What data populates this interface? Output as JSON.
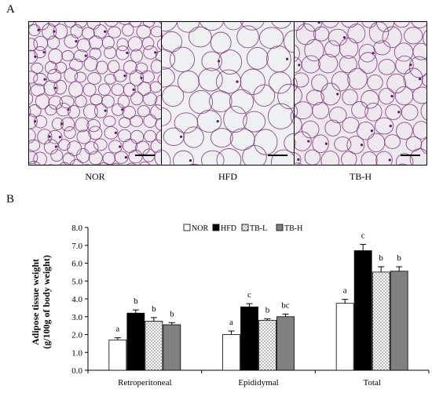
{
  "panels": {
    "a_label": "A",
    "b_label": "B",
    "images": [
      {
        "label": "NOR",
        "cell_size": "small",
        "tint": "#efeaf0",
        "stain": "#7d2f7a"
      },
      {
        "label": "HFD",
        "cell_size": "large",
        "tint": "#eef0f2",
        "stain": "#7d2f7a"
      },
      {
        "label": "TB-H",
        "cell_size": "medium",
        "tint": "#eee9ee",
        "stain": "#7d2f7a"
      }
    ]
  },
  "chart_data": {
    "type": "bar",
    "ylabel_line1": "Adipose tissue weight",
    "ylabel_line2": "(g/100g of body weight)",
    "ylim": [
      0,
      8
    ],
    "yticks": [
      "0.0",
      "1.0",
      "2.0",
      "3.0",
      "4.0",
      "5.0",
      "6.0",
      "7.0",
      "8.0"
    ],
    "categories": [
      "Retroperitoneal",
      "Epididymal",
      "Total"
    ],
    "legend_position": "top-center",
    "series": [
      {
        "name": "NOR",
        "fill": "white",
        "values": [
          1.7,
          2.0,
          3.75
        ],
        "errors": [
          0.12,
          0.2,
          0.22
        ],
        "letters": [
          "a",
          "a",
          "a"
        ]
      },
      {
        "name": "HFD",
        "fill": "black",
        "values": [
          3.2,
          3.55,
          6.7
        ],
        "errors": [
          0.18,
          0.18,
          0.35
        ],
        "letters": [
          "b",
          "c",
          "c"
        ]
      },
      {
        "name": "TB-L",
        "fill": "dotted",
        "values": [
          2.75,
          2.8,
          5.5
        ],
        "errors": [
          0.2,
          0.08,
          0.3
        ],
        "letters": [
          "b",
          "b",
          "b"
        ]
      },
      {
        "name": "TB-H",
        "fill": "gray",
        "values": [
          2.55,
          3.0,
          5.55
        ],
        "errors": [
          0.12,
          0.15,
          0.25
        ],
        "letters": [
          "b",
          "bc",
          "b"
        ]
      }
    ]
  }
}
